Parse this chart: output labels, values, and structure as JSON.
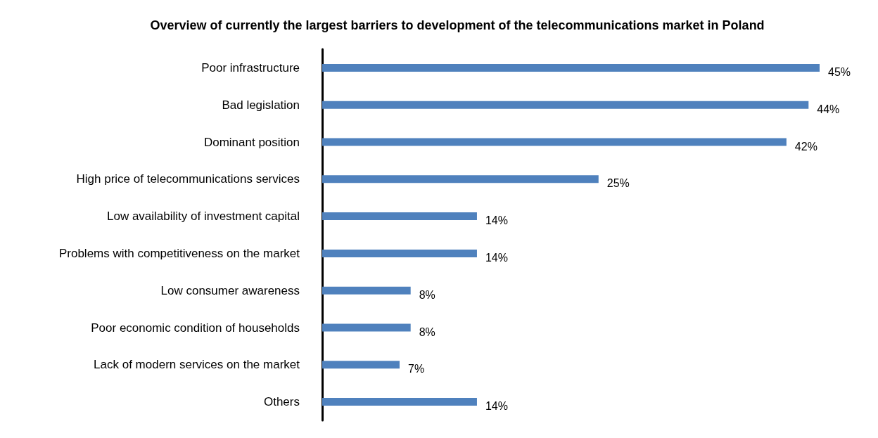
{
  "chart_data": {
    "type": "bar",
    "orientation": "horizontal",
    "title": "Overview of currently the largest barriers to development of the telecommunications market in Poland",
    "categories": [
      "Poor infrastructure",
      "Bad legislation",
      "Dominant position",
      "High price of telecommunications services",
      "Low availability of investment capital",
      "Problems with competitiveness on the market",
      "Low consumer awareness",
      "Poor economic condition of households",
      "Lack of modern services on the market",
      "Others"
    ],
    "values": [
      45,
      44,
      42,
      25,
      14,
      14,
      8,
      8,
      7,
      14
    ],
    "value_labels": [
      "45%",
      "44%",
      "42%",
      "25%",
      "14%",
      "14%",
      "8%",
      "8%",
      "7%",
      "14%"
    ],
    "color": "#4f81bd",
    "grid": false
  }
}
